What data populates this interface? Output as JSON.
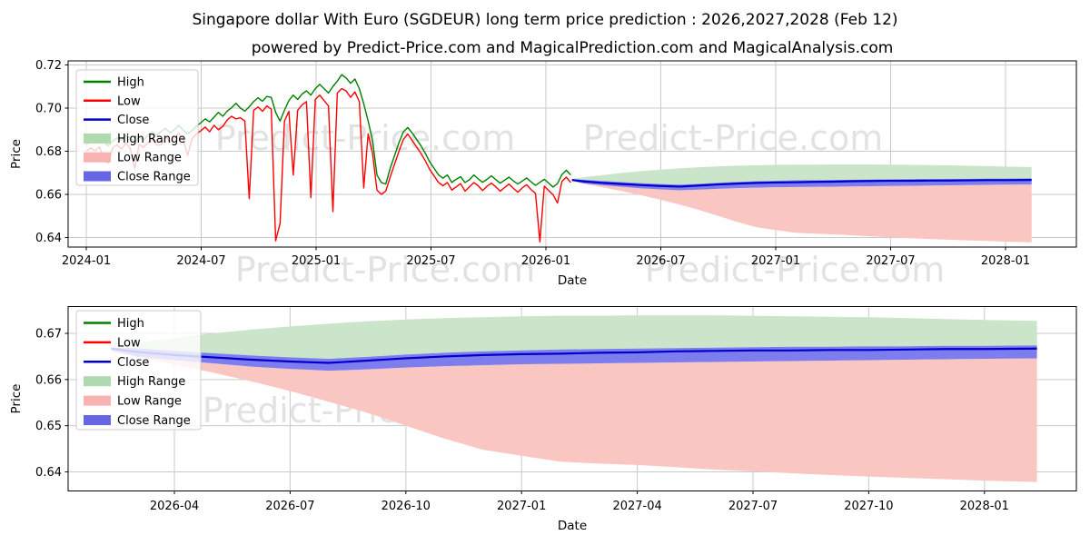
{
  "title": "Singapore dollar With Euro (SGDEUR) long term price prediction : 2026,2027,2028 (Feb 12)",
  "subtitle": "powered by Predict-Price.com and MagicalPrediction.com and MagicalAnalysis.com",
  "watermark": "Predict-Price.com",
  "colors": {
    "high": "#008000",
    "low": "#ff0000",
    "close": "#0000cc",
    "high_range_band": "#cbe5ca",
    "low_range_band": "#fac6c2",
    "close_range_band": "#7d7dee",
    "legend_high_range": "#afd9af",
    "legend_low_range": "#f8b2b2",
    "legend_close_range": "#6767e6",
    "grid": "#c9c9c9",
    "axis": "#000000",
    "watermark": "#c6c6c6"
  },
  "chart_data": [
    {
      "type": "line",
      "name": "price-history-and-forecast",
      "xlabel": "Date",
      "ylabel": "Price",
      "grid": true,
      "legend_position": "upper left",
      "x_ticks": [
        "2024-01",
        "2024-07",
        "2025-01",
        "2025-07",
        "2026-01",
        "2026-07",
        "2027-01",
        "2027-07",
        "2028-01"
      ],
      "y_ticks": [
        "0.72",
        "0.70",
        "0.68",
        "0.66",
        "0.64"
      ],
      "ylim": [
        0.636,
        0.722
      ],
      "legend": [
        {
          "label": "High",
          "kind": "line",
          "color_key": "high"
        },
        {
          "label": "Low",
          "kind": "line",
          "color_key": "low"
        },
        {
          "label": "Close",
          "kind": "line",
          "color_key": "close"
        },
        {
          "label": "High Range",
          "kind": "patch",
          "color_key": "legend_high_range"
        },
        {
          "label": "Low Range",
          "kind": "patch",
          "color_key": "legend_low_range"
        },
        {
          "label": "Close Range",
          "kind": "patch",
          "color_key": "legend_close_range"
        }
      ],
      "series": {
        "historical": {
          "start_date": "2024-01-01",
          "interval_days": 7,
          "high": [
            0.683,
            0.6845,
            0.6838,
            0.6852,
            0.684,
            0.6826,
            0.6848,
            0.6862,
            0.685,
            0.6872,
            0.686,
            0.6842,
            0.6866,
            0.6852,
            0.6876,
            0.689,
            0.6872,
            0.6892,
            0.6906,
            0.6886,
            0.69,
            0.692,
            0.6898,
            0.688,
            0.6896,
            0.6916,
            0.6932,
            0.695,
            0.6936,
            0.6958,
            0.698,
            0.6962,
            0.6986,
            0.7002,
            0.7022,
            0.7,
            0.6986,
            0.7006,
            0.703,
            0.7048,
            0.7032,
            0.7054,
            0.705,
            0.698,
            0.694,
            0.699,
            0.7035,
            0.706,
            0.704,
            0.7065,
            0.708,
            0.706,
            0.709,
            0.711,
            0.709,
            0.707,
            0.71,
            0.7125,
            0.7155,
            0.714,
            0.7115,
            0.7135,
            0.709,
            0.702,
            0.694,
            0.685,
            0.669,
            0.6655,
            0.6648,
            0.672,
            0.678,
            0.684,
            0.689,
            0.691,
            0.6885,
            0.6855,
            0.6825,
            0.679,
            0.675,
            0.672,
            0.669,
            0.6675,
            0.669,
            0.6655,
            0.667,
            0.6682,
            0.6655,
            0.6668,
            0.669,
            0.6672,
            0.6656,
            0.667,
            0.6686,
            0.6668,
            0.6652,
            0.6666,
            0.668,
            0.6662,
            0.6648,
            0.6662,
            0.6676,
            0.6658,
            0.6642,
            0.6656,
            0.667,
            0.6652,
            0.6634,
            0.665,
            0.6692,
            0.6712,
            0.669
          ],
          "low": [
            0.68,
            0.6815,
            0.6802,
            0.682,
            0.676,
            0.6745,
            0.6815,
            0.683,
            0.681,
            0.6838,
            0.6812,
            0.672,
            0.6832,
            0.6818,
            0.684,
            0.6855,
            0.6828,
            0.683,
            0.687,
            0.6845,
            0.6862,
            0.6885,
            0.6855,
            0.678,
            0.6858,
            0.688,
            0.6895,
            0.6912,
            0.689,
            0.692,
            0.69,
            0.6915,
            0.6945,
            0.6962,
            0.695,
            0.6955,
            0.694,
            0.658,
            0.699,
            0.7005,
            0.6985,
            0.701,
            0.6995,
            0.6385,
            0.6465,
            0.694,
            0.6985,
            0.669,
            0.699,
            0.7015,
            0.703,
            0.6585,
            0.704,
            0.706,
            0.7035,
            0.701,
            0.652,
            0.707,
            0.709,
            0.708,
            0.705,
            0.7075,
            0.703,
            0.663,
            0.688,
            0.679,
            0.662,
            0.66,
            0.6615,
            0.668,
            0.674,
            0.68,
            0.6855,
            0.688,
            0.685,
            0.682,
            0.679,
            0.6755,
            0.6715,
            0.6685,
            0.6655,
            0.664,
            0.6655,
            0.662,
            0.6635,
            0.665,
            0.6615,
            0.6635,
            0.6655,
            0.664,
            0.6618,
            0.6638,
            0.6652,
            0.6635,
            0.6615,
            0.6632,
            0.6648,
            0.6628,
            0.661,
            0.663,
            0.6645,
            0.6622,
            0.6605,
            0.638,
            0.6638,
            0.6618,
            0.6598,
            0.656,
            0.666,
            0.668,
            0.6655
          ]
        },
        "prediction": {
          "dates": [
            "2026-02-12",
            "2026-03-01",
            "2026-04-01",
            "2026-05-01",
            "2026-06-01",
            "2026-07-01",
            "2026-08-01",
            "2026-09-01",
            "2026-10-01",
            "2026-11-01",
            "2026-12-01",
            "2027-01-01",
            "2027-02-01",
            "2027-03-01",
            "2027-04-01",
            "2027-05-01",
            "2027-06-01",
            "2027-07-01",
            "2027-08-01",
            "2027-09-01",
            "2027-10-01",
            "2027-11-01",
            "2027-12-01",
            "2028-01-01",
            "2028-02-12"
          ],
          "close": [
            0.6667,
            0.666,
            0.6653,
            0.6648,
            0.6643,
            0.6639,
            0.6636,
            0.6641,
            0.6646,
            0.665,
            0.6653,
            0.6655,
            0.6656,
            0.6658,
            0.6659,
            0.6661,
            0.6662,
            0.6663,
            0.6663,
            0.6664,
            0.6664,
            0.6665,
            0.6666,
            0.6666,
            0.6667
          ],
          "high_range_top": [
            0.6672,
            0.668,
            0.669,
            0.67,
            0.6708,
            0.6715,
            0.6721,
            0.6726,
            0.673,
            0.6733,
            0.6735,
            0.6737,
            0.6738,
            0.6738,
            0.6739,
            0.6739,
            0.6739,
            0.6738,
            0.6737,
            0.6736,
            0.6735,
            0.6733,
            0.6731,
            0.6729,
            0.6727
          ],
          "low_range_bottom": [
            0.666,
            0.665,
            0.6632,
            0.6615,
            0.6596,
            0.6575,
            0.6552,
            0.6528,
            0.65,
            0.6472,
            0.6448,
            0.6435,
            0.6422,
            0.6418,
            0.6415,
            0.641,
            0.6405,
            0.6401,
            0.6397,
            0.6393,
            0.639,
            0.6387,
            0.6384,
            0.6381,
            0.6378
          ],
          "close_range_high": [
            0.6669,
            0.6668,
            0.6662,
            0.6657,
            0.6652,
            0.6648,
            0.6645,
            0.6649,
            0.6654,
            0.6658,
            0.6661,
            0.6663,
            0.6665,
            0.6666,
            0.6667,
            0.6668,
            0.6669,
            0.667,
            0.6671,
            0.6671,
            0.6672,
            0.6672,
            0.6673,
            0.6673,
            0.6674
          ],
          "close_range_low": [
            0.6664,
            0.665,
            0.6642,
            0.6635,
            0.6628,
            0.6623,
            0.6619,
            0.6622,
            0.6626,
            0.6629,
            0.6631,
            0.6633,
            0.6634,
            0.6635,
            0.6636,
            0.6637,
            0.6638,
            0.6639,
            0.664,
            0.6641,
            0.6642,
            0.6643,
            0.6644,
            0.6645,
            0.6646
          ]
        }
      }
    },
    {
      "type": "line",
      "name": "forecast-detail",
      "xlabel": "Date",
      "ylabel": "Price",
      "grid": true,
      "legend_position": "upper left",
      "x_ticks": [
        "2026-04",
        "2026-07",
        "2026-10",
        "2027-01",
        "2027-04",
        "2027-07",
        "2027-10",
        "2028-01"
      ],
      "y_ticks": [
        "0.67",
        "0.66",
        "0.65",
        "0.64"
      ],
      "ylim": [
        0.6358,
        0.6758
      ],
      "legend": [
        {
          "label": "High",
          "kind": "line",
          "color_key": "high"
        },
        {
          "label": "Low",
          "kind": "line",
          "color_key": "low"
        },
        {
          "label": "Close",
          "kind": "line",
          "color_key": "close"
        },
        {
          "label": "High Range",
          "kind": "patch",
          "color_key": "legend_high_range"
        },
        {
          "label": "Low Range",
          "kind": "patch",
          "color_key": "legend_low_range"
        },
        {
          "label": "Close Range",
          "kind": "patch",
          "color_key": "legend_close_range"
        }
      ],
      "series": {
        "prediction": {
          "dates": [
            "2026-02-12",
            "2026-03-01",
            "2026-04-01",
            "2026-05-01",
            "2026-06-01",
            "2026-07-01",
            "2026-08-01",
            "2026-09-01",
            "2026-10-01",
            "2026-11-01",
            "2026-12-01",
            "2027-01-01",
            "2027-02-01",
            "2027-03-01",
            "2027-04-01",
            "2027-05-01",
            "2027-06-01",
            "2027-07-01",
            "2027-08-01",
            "2027-09-01",
            "2027-10-01",
            "2027-11-01",
            "2027-12-01",
            "2028-01-01",
            "2028-02-12"
          ],
          "close": [
            0.6667,
            0.666,
            0.6653,
            0.6648,
            0.6643,
            0.6639,
            0.6636,
            0.6641,
            0.6646,
            0.665,
            0.6653,
            0.6655,
            0.6656,
            0.6658,
            0.6659,
            0.6661,
            0.6662,
            0.6663,
            0.6663,
            0.6664,
            0.6664,
            0.6665,
            0.6666,
            0.6666,
            0.6667
          ],
          "high_range_top": [
            0.6672,
            0.668,
            0.669,
            0.67,
            0.6708,
            0.6715,
            0.6721,
            0.6726,
            0.673,
            0.6733,
            0.6735,
            0.6737,
            0.6738,
            0.6738,
            0.6739,
            0.6739,
            0.6739,
            0.6738,
            0.6737,
            0.6736,
            0.6735,
            0.6733,
            0.6731,
            0.6729,
            0.6727
          ],
          "low_range_bottom": [
            0.666,
            0.665,
            0.6632,
            0.6615,
            0.6596,
            0.6575,
            0.6552,
            0.6528,
            0.65,
            0.6472,
            0.6448,
            0.6435,
            0.6422,
            0.6418,
            0.6415,
            0.641,
            0.6405,
            0.6401,
            0.6397,
            0.6393,
            0.639,
            0.6387,
            0.6384,
            0.6381,
            0.6378
          ],
          "close_range_high": [
            0.6669,
            0.6668,
            0.6662,
            0.6657,
            0.6652,
            0.6648,
            0.6645,
            0.6649,
            0.6654,
            0.6658,
            0.6661,
            0.6663,
            0.6665,
            0.6666,
            0.6667,
            0.6668,
            0.6669,
            0.667,
            0.6671,
            0.6671,
            0.6672,
            0.6672,
            0.6673,
            0.6673,
            0.6674
          ],
          "close_range_low": [
            0.6664,
            0.665,
            0.6642,
            0.6635,
            0.6628,
            0.6623,
            0.6619,
            0.6622,
            0.6626,
            0.6629,
            0.6631,
            0.6633,
            0.6634,
            0.6635,
            0.6636,
            0.6637,
            0.6638,
            0.6639,
            0.664,
            0.6641,
            0.6642,
            0.6643,
            0.6644,
            0.6645,
            0.6646
          ]
        }
      }
    }
  ]
}
